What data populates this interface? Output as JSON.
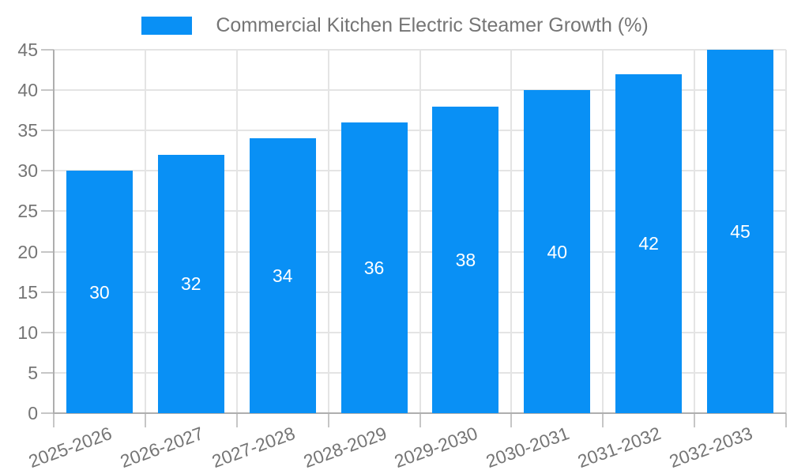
{
  "colors": {
    "bar": "#0990F5",
    "text_gray": "#757575",
    "axis": "#aeaeae",
    "grid": "#e4e4e4",
    "tick": "#c6c6c6",
    "value_label": "#ffffff"
  },
  "chart_data": {
    "type": "bar",
    "title": "Commercial Kitchen Electric Steamer Growth (%)",
    "categories": [
      "2025-2026",
      "2026-2027",
      "2027-2028",
      "2028-2029",
      "2029-2030",
      "2030-2031",
      "2031-2032",
      "2032-2033"
    ],
    "values": [
      30,
      32,
      34,
      36,
      38,
      40,
      42,
      45
    ],
    "yticks": [
      0,
      5,
      10,
      15,
      20,
      25,
      30,
      35,
      40,
      45
    ],
    "ylim": [
      0,
      45
    ],
    "xlabel": "",
    "ylabel": "",
    "grid": true,
    "legend_position": "top",
    "value_labels": "inside-center"
  }
}
